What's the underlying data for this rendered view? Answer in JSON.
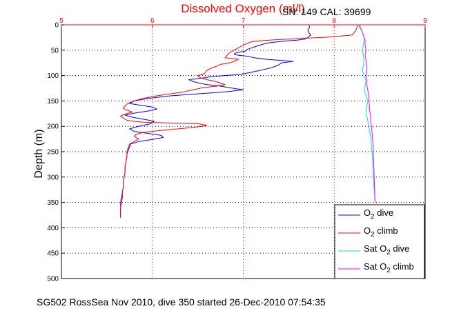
{
  "chart_data": {
    "type": "line",
    "title": "Dissolved Oxygen (ml/l)",
    "subtitle": "SN: 149  CAL: 39699",
    "ylabel": "Depth (m)",
    "footer": "SG502 RossSea Nov 2010, dive 350 started 26-Dec-2010 07:54:35",
    "xlim": [
      5,
      9
    ],
    "ylim": [
      0,
      500
    ],
    "y_reversed": true,
    "x_ticks": [
      5,
      6,
      7,
      8,
      9
    ],
    "y_ticks": [
      0,
      50,
      100,
      150,
      200,
      250,
      300,
      350,
      400,
      450,
      500
    ],
    "grid": true,
    "x_axis_position": "top",
    "legend_position": "bottom-right",
    "series": [
      {
        "legend_main": "O",
        "legend_sub": "2",
        "legend_rest": " dive",
        "color": "#0000ff",
        "x": [
          7.72,
          7.73,
          7.71,
          7.72,
          7.74,
          7.71,
          7.68,
          7.6,
          7.45,
          7.3,
          7.22,
          7.15,
          7.05,
          7.02,
          6.92,
          6.9,
          6.95,
          7.05,
          7.12,
          7.25,
          7.4,
          7.55,
          7.42,
          7.38,
          7.3,
          7.18,
          7.05,
          6.95,
          6.8,
          6.65,
          6.55,
          6.4,
          6.45,
          6.52,
          6.6,
          6.72,
          6.85,
          7.0,
          6.8,
          6.5,
          6.2,
          5.95,
          5.8,
          5.75,
          5.85,
          6.0,
          6.05,
          5.95,
          5.8,
          5.7,
          5.78,
          5.9,
          6.02,
          5.98,
          5.85,
          5.75,
          5.8,
          5.95,
          6.1,
          6.12,
          6.0,
          5.85,
          5.76,
          5.75,
          5.74,
          5.73,
          5.72,
          5.72,
          5.71,
          5.7,
          5.7,
          5.69,
          5.68,
          5.68,
          5.67,
          5.67,
          5.66,
          5.65,
          5.65
        ],
        "y": [
          0,
          5,
          10,
          15,
          20,
          25,
          28,
          30,
          32,
          35,
          38,
          42,
          48,
          52,
          55,
          58,
          60,
          62,
          65,
          68,
          70,
          72,
          75,
          80,
          85,
          90,
          95,
          98,
          100,
          102,
          105,
          108,
          112,
          115,
          118,
          120,
          124,
          128,
          132,
          136,
          140,
          145,
          150,
          155,
          158,
          162,
          166,
          170,
          174,
          178,
          182,
          186,
          190,
          195,
          200,
          205,
          210,
          214,
          218,
          222,
          226,
          230,
          235,
          240,
          245,
          250,
          255,
          260,
          270,
          280,
          290,
          300,
          310,
          320,
          330,
          340,
          350,
          360,
          380
        ]
      },
      {
        "legend_main": "O",
        "legend_sub": "2",
        "legend_rest": " climb",
        "color": "#ff0000",
        "x": [
          8.26,
          8.25,
          8.24,
          8.22,
          8.2,
          7.95,
          7.5,
          7.3,
          7.1,
          7.05,
          7.0,
          6.95,
          6.9,
          6.85,
          6.82,
          6.8,
          6.95,
          6.9,
          6.85,
          6.75,
          6.7,
          6.65,
          6.6,
          6.58,
          6.55,
          6.5,
          6.52,
          6.6,
          6.7,
          6.75,
          6.8,
          6.7,
          6.55,
          6.45,
          6.35,
          6.2,
          6.05,
          5.9,
          5.8,
          5.73,
          5.7,
          5.68,
          5.72,
          5.78,
          5.7,
          5.65,
          5.68,
          5.72,
          5.78,
          5.9,
          6.1,
          6.3,
          6.5,
          6.6,
          6.55,
          6.35,
          6.1,
          5.9,
          5.82,
          5.8,
          5.85,
          5.8,
          5.75,
          5.74,
          5.73,
          5.72,
          5.72,
          5.71,
          5.7,
          5.7,
          5.69,
          5.68,
          5.68,
          5.67,
          5.66,
          5.65,
          5.65
        ],
        "y": [
          0,
          5,
          10,
          15,
          20,
          24,
          28,
          30,
          33,
          36,
          40,
          45,
          50,
          55,
          60,
          65,
          68,
          72,
          75,
          78,
          82,
          85,
          90,
          95,
          98,
          100,
          104,
          108,
          112,
          115,
          118,
          121,
          124,
          128,
          132,
          136,
          140,
          145,
          150,
          155,
          160,
          165,
          168,
          172,
          176,
          180,
          184,
          188,
          190,
          192,
          193,
          194,
          195,
          198,
          200,
          204,
          208,
          212,
          216,
          220,
          225,
          230,
          235,
          240,
          245,
          250,
          260,
          270,
          280,
          290,
          300,
          310,
          320,
          330,
          340,
          350,
          380
        ]
      },
      {
        "legend_main": "Sat O",
        "legend_sub": "2",
        "legend_rest": " dive",
        "color": "#00e0e0",
        "x": [
          8.28,
          8.29,
          8.3,
          8.31,
          8.32,
          8.33,
          8.33,
          8.32,
          8.31,
          8.32,
          8.33,
          8.32,
          8.31,
          8.33,
          8.35,
          8.34,
          8.33,
          8.35,
          8.37,
          8.36,
          8.35,
          8.36,
          8.37,
          8.38,
          8.39,
          8.4,
          8.41,
          8.42,
          8.43,
          8.45
        ],
        "y": [
          0,
          5,
          10,
          15,
          20,
          25,
          30,
          40,
          50,
          60,
          70,
          80,
          90,
          100,
          110,
          120,
          130,
          140,
          150,
          160,
          170,
          180,
          190,
          200,
          210,
          220,
          240,
          260,
          300,
          350
        ]
      },
      {
        "legend_main": "Sat O",
        "legend_sub": "2",
        "legend_rest": " climb",
        "color": "#ff00ff",
        "x": [
          8.27,
          8.28,
          8.3,
          8.31,
          8.32,
          8.33,
          8.34,
          8.34,
          8.35,
          8.34,
          8.35,
          8.36,
          8.36,
          8.35,
          8.36,
          8.36,
          8.37,
          8.38,
          8.38,
          8.39,
          8.39,
          8.4,
          8.4,
          8.41,
          8.42,
          8.43,
          8.44,
          8.45
        ],
        "y": [
          0,
          5,
          10,
          15,
          20,
          25,
          30,
          40,
          50,
          60,
          70,
          80,
          90,
          100,
          110,
          120,
          130,
          140,
          150,
          160,
          170,
          180,
          190,
          200,
          220,
          250,
          300,
          350
        ]
      }
    ]
  }
}
